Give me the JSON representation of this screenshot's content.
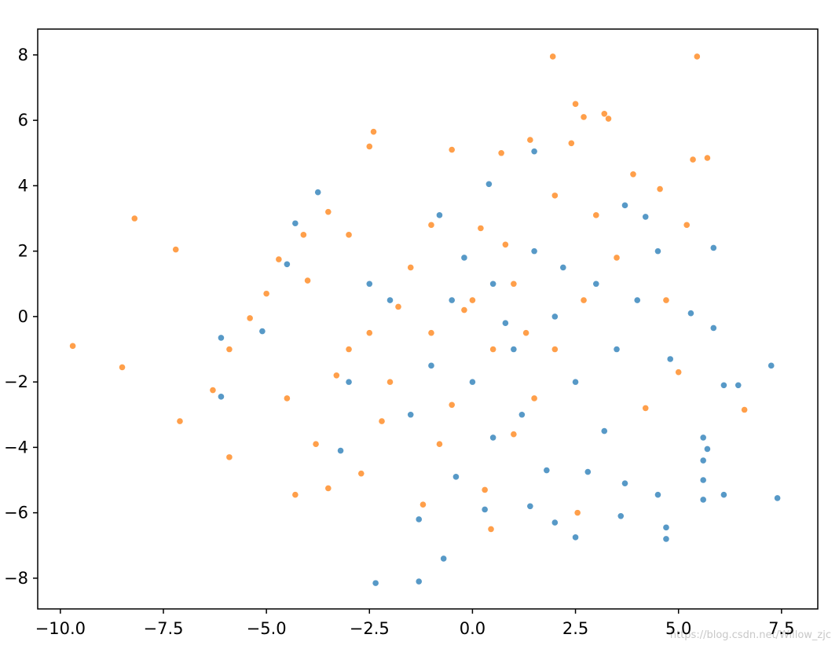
{
  "chart_data": {
    "type": "scatter",
    "xlim": [
      -10.55,
      8.38
    ],
    "ylim": [
      -8.94,
      8.79
    ],
    "xticks": [
      {
        "value": -10,
        "label": "−10.0"
      },
      {
        "value": -7.5,
        "label": "−7.5"
      },
      {
        "value": -5,
        "label": "−5.0"
      },
      {
        "value": -2.5,
        "label": "−2.5"
      },
      {
        "value": 0,
        "label": "0.0"
      },
      2.5,
      {
        "value": 5,
        "label": "5.0"
      },
      7.5
    ],
    "yticks": [
      {
        "value": -8,
        "label": "−8"
      },
      {
        "value": -6,
        "label": "−6"
      },
      {
        "value": -4,
        "label": "−4"
      },
      {
        "value": -2,
        "label": "−2"
      },
      0,
      2,
      4,
      6,
      8
    ],
    "watermark": "https://blog.csdn.net/Willow_zjc",
    "series": [
      {
        "color": "#1f77b4",
        "x": [
          -2.35,
          -1.3,
          -0.7,
          2.5,
          4.7,
          4.7,
          7.4,
          6.1,
          5.6,
          7.25,
          6.45,
          6.1,
          5.85,
          5.85,
          -3.75,
          -4.3,
          -6.1,
          -6.1,
          -5.1,
          -4.5,
          -3.2,
          1.5,
          0.4,
          3.7,
          4.2,
          5.6,
          5.7,
          5.6,
          5.6,
          3.6,
          1.4,
          2,
          -1.3,
          0.3,
          -0.4,
          1.8,
          2.8,
          4.5,
          3.7,
          0.5,
          -0.5,
          1,
          -1,
          2,
          -2,
          1.5,
          0,
          3,
          -1.5,
          2.5,
          4,
          -3,
          0.8,
          -0.2,
          1.2,
          3.5,
          -2.5,
          4.5,
          0.5,
          2.2,
          -0.8,
          3.2,
          5.3,
          4.8
        ],
        "y": [
          -8.15,
          -8.1,
          -7.4,
          -6.75,
          -6.8,
          -6.45,
          -5.55,
          -5.45,
          -5.6,
          -1.5,
          -2.1,
          -2.1,
          -0.35,
          2.1,
          3.8,
          2.85,
          -0.65,
          -2.45,
          -0.45,
          1.6,
          -4.1,
          5.05,
          4.05,
          3.4,
          3.05,
          -3.7,
          -4.05,
          -4.4,
          -5.0,
          -6.1,
          -5.8,
          -6.3,
          -6.2,
          -5.9,
          -4.9,
          -4.7,
          -4.75,
          -5.45,
          -5.1,
          1.0,
          0.5,
          -1,
          -1.5,
          0,
          0.5,
          2,
          -2,
          1,
          -3,
          -2,
          0.5,
          -2,
          -0.2,
          1.8,
          -3,
          -1,
          1.0,
          2.0,
          -3.7,
          1.5,
          3.1,
          -3.5,
          0.1,
          -1.3
        ]
      },
      {
        "color": "#ff7f0e",
        "x": [
          -9.7,
          -8.5,
          -8.2,
          -7.2,
          -7.1,
          -6.3,
          -5.9,
          -5.9,
          -5.4,
          -5.0,
          -4.7,
          -4.3,
          -3.5,
          -3.5,
          -2.5,
          -2.4,
          -2.2,
          -2.7,
          1.95,
          5.45,
          2.5,
          2.7,
          3.2,
          3.3,
          5.35,
          5.7,
          6.6,
          2.55,
          0.45,
          -1.2,
          0.7,
          1.4,
          -0.5,
          2.4,
          4.55,
          3.9,
          5.2,
          4.7,
          -4,
          -4.1,
          -3,
          0,
          0.5,
          -1,
          1,
          -2,
          1.5,
          2,
          -1.5,
          0.2,
          -0.5,
          3,
          2,
          -3,
          -4.5,
          5,
          4.2,
          1,
          -0.8,
          0.3,
          -1.8,
          1.3,
          2.7,
          -2.5,
          -0.2,
          0.8,
          3.5,
          -1,
          -3.8,
          -3.3
        ],
        "y": [
          -0.9,
          -1.55,
          3.0,
          2.05,
          -3.2,
          -2.25,
          -4.3,
          -1.0,
          -0.05,
          0.7,
          1.75,
          -5.45,
          -5.25,
          3.2,
          5.2,
          5.65,
          -3.2,
          -4.8,
          7.95,
          7.95,
          6.5,
          6.1,
          6.2,
          6.05,
          4.8,
          4.85,
          -2.85,
          -6.0,
          -6.5,
          -5.75,
          5.0,
          5.4,
          5.1,
          5.3,
          3.9,
          4.35,
          2.8,
          0.5,
          1.1,
          2.5,
          2.5,
          0.5,
          -1,
          -0.5,
          1,
          -2,
          -2.5,
          -1,
          1.5,
          2.7,
          -2.7,
          3.1,
          3.7,
          -1,
          -2.5,
          -1.7,
          -2.8,
          -3.6,
          -3.9,
          -5.3,
          0.3,
          -0.5,
          0.5,
          -0.5,
          0.2,
          2.2,
          1.8,
          2.8,
          -3.9,
          -1.8
        ]
      }
    ]
  }
}
